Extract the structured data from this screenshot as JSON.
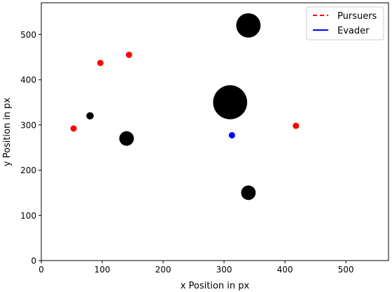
{
  "chart_data": {
    "type": "scatter",
    "title": "",
    "xlabel": "x Position in px",
    "ylabel": "y Position in px",
    "xlim": [
      0,
      570
    ],
    "ylim": [
      0,
      570
    ],
    "xticks": [
      0,
      100,
      200,
      300,
      400,
      500
    ],
    "yticks": [
      0,
      100,
      200,
      300,
      400,
      500
    ],
    "grid": false,
    "legend_position": "top-right",
    "legend": [
      {
        "name": "Pursuers",
        "style": "dashed",
        "color": "#ff0000"
      },
      {
        "name": "Evader",
        "style": "solid",
        "color": "#0000ff"
      }
    ],
    "obstacles": {
      "color": "#000000",
      "points": [
        {
          "x": 340,
          "y": 520,
          "r": 20
        },
        {
          "x": 310,
          "y": 350,
          "r": 28
        },
        {
          "x": 140,
          "y": 270,
          "r": 12
        },
        {
          "x": 80,
          "y": 320,
          "r": 6
        },
        {
          "x": 340,
          "y": 150,
          "r": 12
        }
      ]
    },
    "pursuers": {
      "color": "#ff0000",
      "points": [
        {
          "x": 97,
          "y": 437
        },
        {
          "x": 144,
          "y": 455
        },
        {
          "x": 53,
          "y": 292
        },
        {
          "x": 418,
          "y": 298
        }
      ]
    },
    "evader": {
      "color": "#0000ff",
      "points": [
        {
          "x": 313,
          "y": 277
        }
      ]
    }
  }
}
